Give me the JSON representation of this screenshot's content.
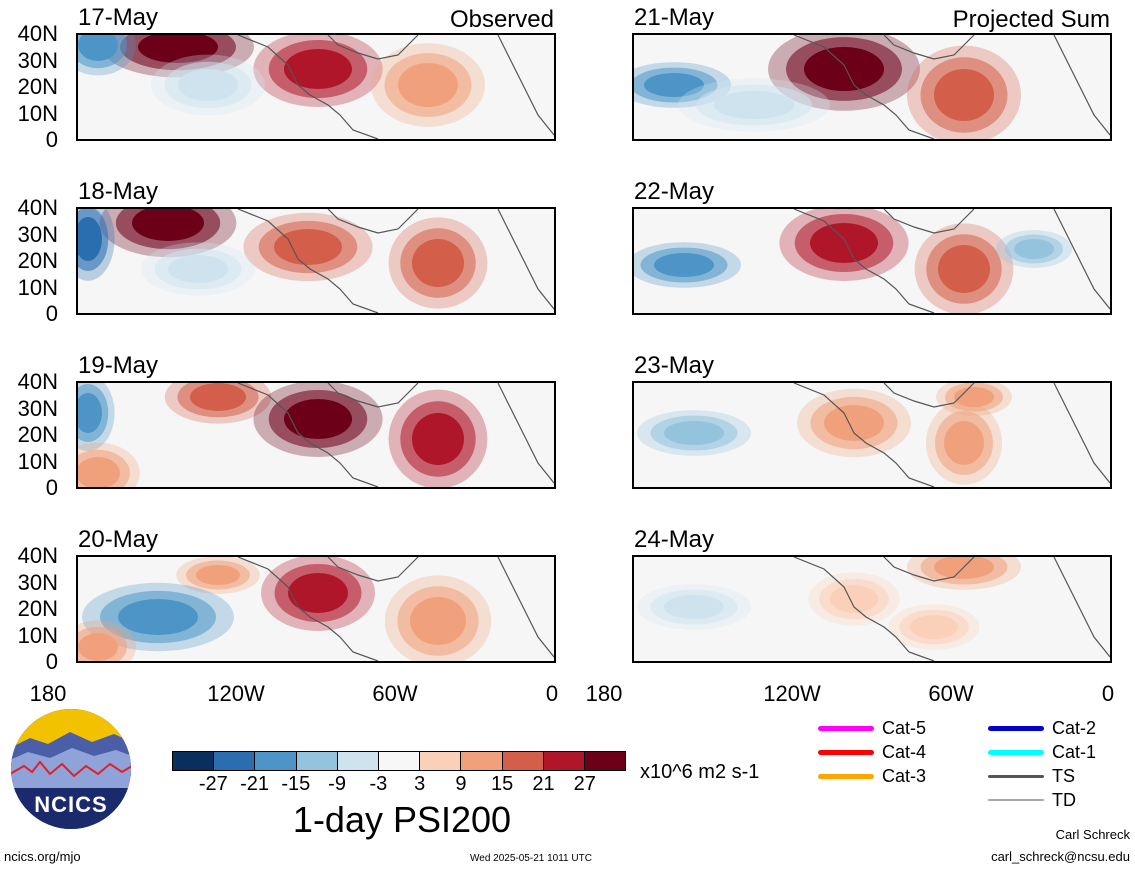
{
  "panels_left": [
    {
      "date": "17-May",
      "tag": "Observed"
    },
    {
      "date": "18-May",
      "tag": ""
    },
    {
      "date": "19-May",
      "tag": ""
    },
    {
      "date": "20-May",
      "tag": ""
    }
  ],
  "panels_right": [
    {
      "date": "21-May",
      "tag": "Projected Sum"
    },
    {
      "date": "22-May",
      "tag": ""
    },
    {
      "date": "23-May",
      "tag": ""
    },
    {
      "date": "24-May",
      "tag": ""
    }
  ],
  "lat_labels": [
    "40N",
    "30N",
    "20N",
    "10N",
    "0"
  ],
  "lon_labels": [
    "180",
    "120W",
    "60W",
    "0"
  ],
  "colorbar": {
    "ticks": [
      "-27",
      "-21",
      "-15",
      "-9",
      "-3",
      "3",
      "9",
      "15",
      "21",
      "27"
    ],
    "colors": [
      "#0b2f5c",
      "#2a6eb0",
      "#4d95c6",
      "#93c3dd",
      "#cfe3ef",
      "#f7f7f7",
      "#fbd0b9",
      "#f0a17c",
      "#d35f4a",
      "#b0162a",
      "#6b0018"
    ],
    "units": "x10^6 m2 s-1",
    "title": "1-day PSI200"
  },
  "legend": [
    {
      "label": "Cat-5",
      "color": "#ff00ff"
    },
    {
      "label": "Cat-4",
      "color": "#ff0000"
    },
    {
      "label": "Cat-3",
      "color": "#ffa500"
    },
    {
      "label": "Cat-2",
      "color": "#0000cc"
    },
    {
      "label": "Cat-1",
      "color": "#00ffff"
    },
    {
      "label": "TS",
      "color": "#555555"
    },
    {
      "label": "TD",
      "color": "#aaaaaa"
    }
  ],
  "logo_text": "NCICS",
  "footer": {
    "left": "ncics.org/mjo",
    "center": "Wed 2025-05-21 1011 UTC",
    "author": "Carl Schreck",
    "email": "carl_schreck@ncsu.edu"
  }
}
